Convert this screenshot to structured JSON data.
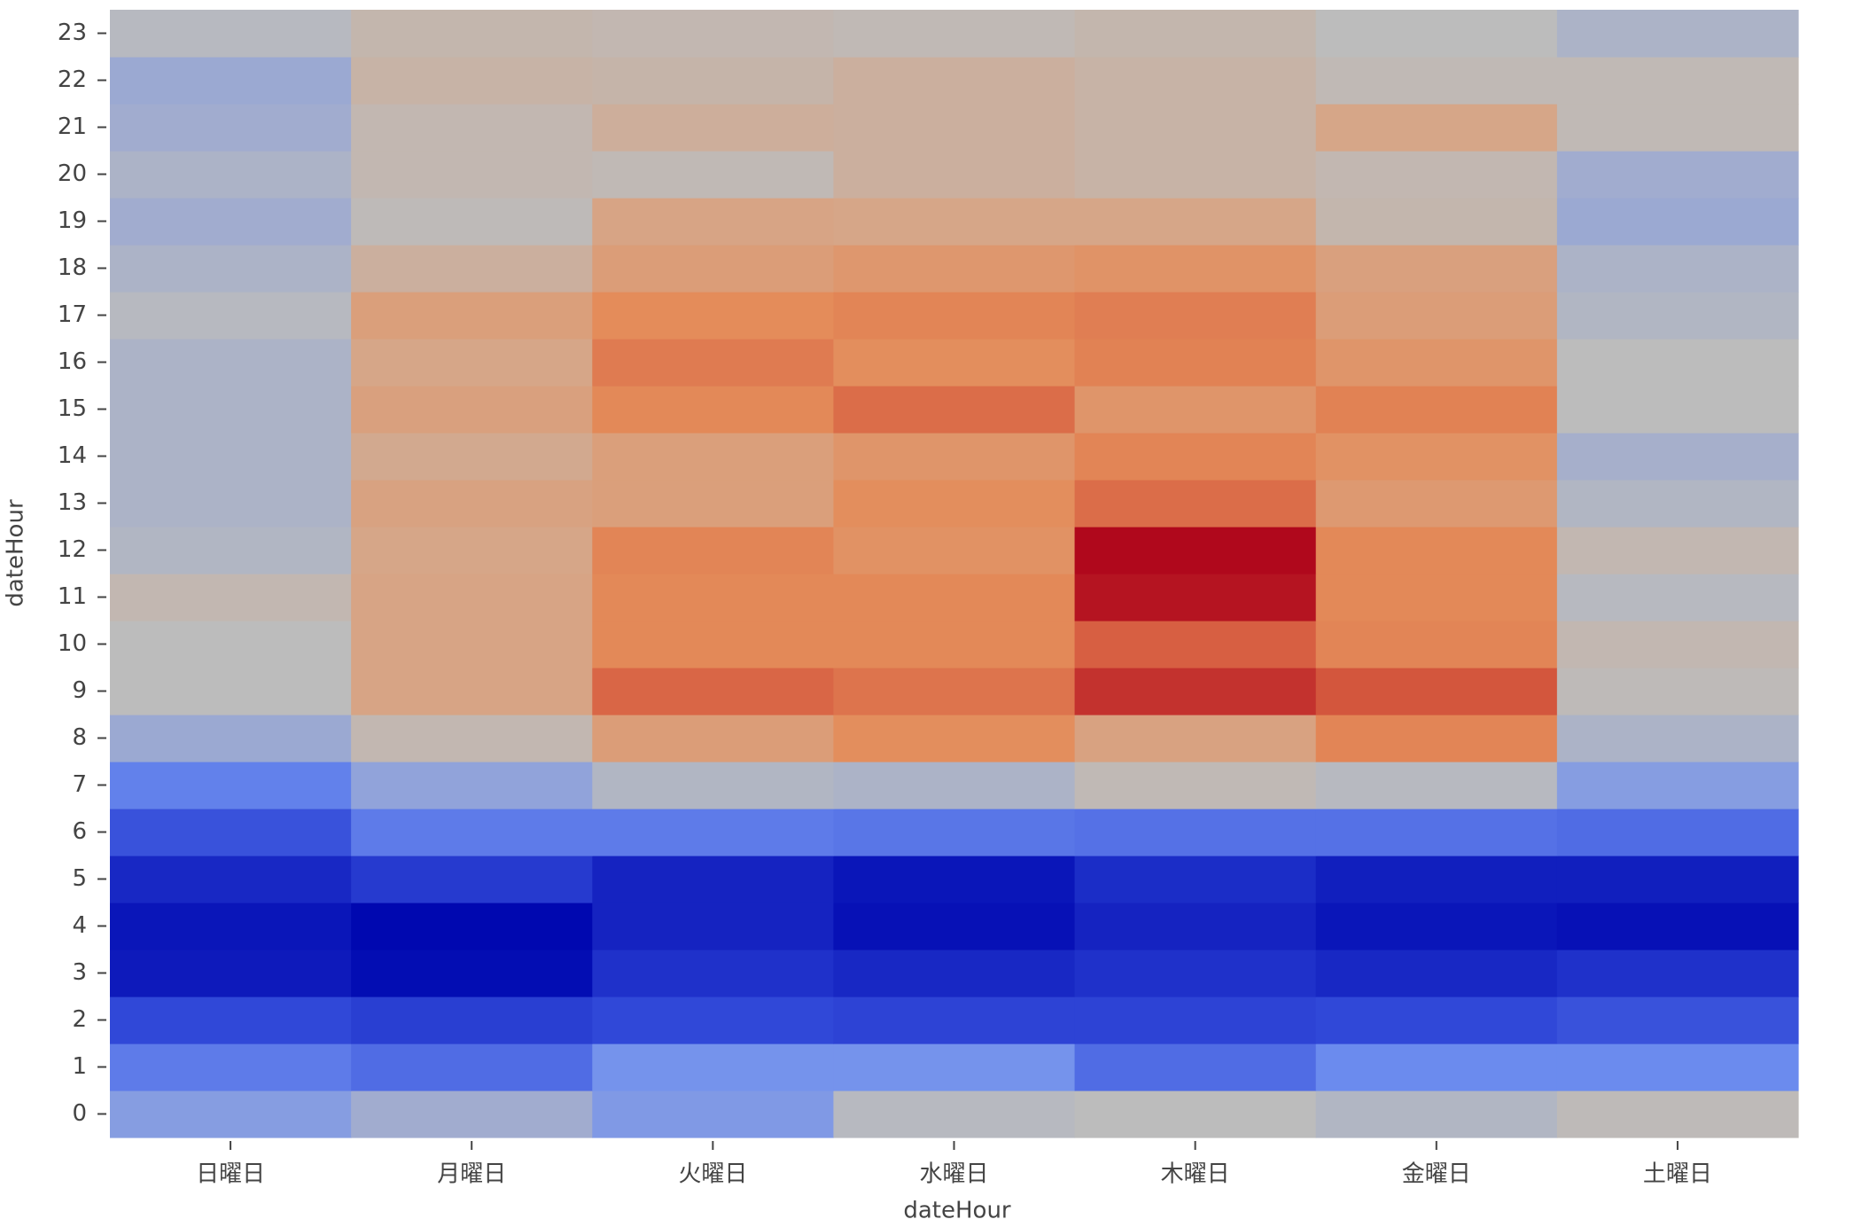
{
  "chart_data": {
    "type": "heatmap",
    "xlabel": "dateHour",
    "ylabel": "dateHour",
    "categories": [
      "日曜日",
      "月曜日",
      "火曜日",
      "水曜日",
      "木曜日",
      "金曜日",
      "土曜日"
    ],
    "y": [
      0,
      1,
      2,
      3,
      4,
      5,
      6,
      7,
      8,
      9,
      10,
      11,
      12,
      13,
      14,
      15,
      16,
      17,
      18,
      19,
      20,
      21,
      22,
      23
    ],
    "z": [
      [
        33,
        38,
        32,
        42,
        43,
        41,
        44
      ],
      [
        25,
        22,
        30,
        30,
        22,
        28,
        28
      ],
      [
        15,
        13,
        15,
        14,
        14,
        15,
        17
      ],
      [
        5,
        2,
        10,
        8,
        10,
        8,
        10
      ],
      [
        4,
        1,
        7,
        3,
        7,
        4,
        3
      ],
      [
        8,
        12,
        7,
        4,
        9,
        6,
        6
      ],
      [
        17,
        25,
        25,
        24,
        23,
        23,
        22
      ],
      [
        26,
        35,
        41,
        40,
        45,
        42,
        33
      ],
      [
        37,
        46,
        62,
        70,
        59,
        73,
        40
      ],
      [
        43,
        58,
        82,
        78,
        92,
        86,
        44
      ],
      [
        43,
        58,
        72,
        72,
        84,
        73,
        46
      ],
      [
        46,
        58,
        72,
        72,
        97,
        72,
        42
      ],
      [
        41,
        57,
        73,
        68,
        99,
        72,
        46
      ],
      [
        40,
        59,
        61,
        70,
        80,
        64,
        41
      ],
      [
        40,
        55,
        61,
        66,
        73,
        68,
        39
      ],
      [
        40,
        60,
        72,
        80,
        66,
        74,
        43
      ],
      [
        40,
        57,
        76,
        70,
        74,
        66,
        43
      ],
      [
        42,
        61,
        71,
        73,
        75,
        62,
        41
      ],
      [
        40,
        51,
        62,
        65,
        67,
        60,
        40
      ],
      [
        38,
        44,
        58,
        57,
        57,
        47,
        37
      ],
      [
        40,
        46,
        45,
        51,
        49,
        46,
        38
      ],
      [
        38,
        46,
        52,
        51,
        49,
        57,
        45
      ],
      [
        37,
        49,
        48,
        51,
        49,
        45,
        45
      ],
      [
        42,
        47,
        46,
        45,
        47,
        43,
        40
      ]
    ],
    "colors": [
      "#0008b0",
      "#3048d8",
      "#7090f0",
      "#bcbcbc",
      "#d6a688",
      "#e48c5a",
      "#d65c40",
      "#b0081c"
    ]
  }
}
